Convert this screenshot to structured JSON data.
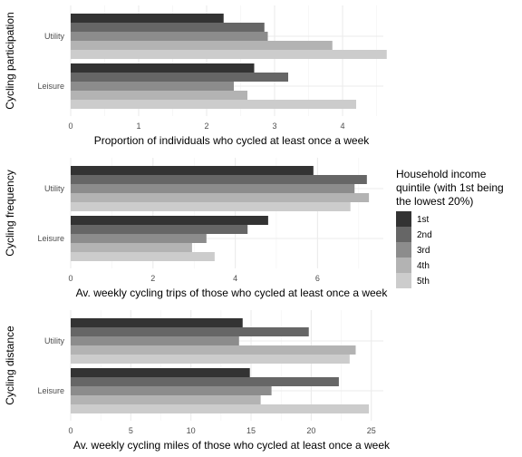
{
  "legend": {
    "title_lines": [
      "Household income",
      "quintile (with 1st being",
      "the lowest 20%)"
    ],
    "labels": [
      "1st",
      "2nd",
      "3rd",
      "4th",
      "5th"
    ]
  },
  "colors": [
    "#333333",
    "#666666",
    "#8c8c8c",
    "#b3b3b3",
    "#cccccc"
  ],
  "chart_data": [
    {
      "type": "bar",
      "orientation": "horizontal",
      "ylabel": "Cycling participation",
      "xlabel": "Proportion of individuals who cycled at least once a week",
      "categories": [
        "Utility",
        "Leisure"
      ],
      "xlim": [
        0,
        4.6
      ],
      "xticks": [
        0,
        1,
        2,
        3,
        4
      ],
      "series": [
        {
          "name": "1st",
          "values": [
            2.25,
            2.7
          ]
        },
        {
          "name": "2nd",
          "values": [
            2.85,
            3.2
          ]
        },
        {
          "name": "3rd",
          "values": [
            2.9,
            2.4
          ]
        },
        {
          "name": "4th",
          "values": [
            3.85,
            2.6
          ]
        },
        {
          "name": "5th",
          "values": [
            4.65,
            4.2
          ]
        }
      ]
    },
    {
      "type": "bar",
      "orientation": "horizontal",
      "ylabel": "Cycling frequency",
      "xlabel": "Av. weekly cycling trips of those who cycled at least once a week",
      "categories": [
        "Utility",
        "Leisure"
      ],
      "xlim": [
        0,
        7.6
      ],
      "xticks": [
        0,
        2,
        4,
        6
      ],
      "series": [
        {
          "name": "1st",
          "values": [
            5.9,
            4.8
          ]
        },
        {
          "name": "2nd",
          "values": [
            7.2,
            4.3
          ]
        },
        {
          "name": "3rd",
          "values": [
            6.9,
            3.3
          ]
        },
        {
          "name": "4th",
          "values": [
            7.25,
            2.95
          ]
        },
        {
          "name": "5th",
          "values": [
            6.8,
            3.5
          ]
        }
      ]
    },
    {
      "type": "bar",
      "orientation": "horizontal",
      "ylabel": "Cycling distance",
      "xlabel": "Av. weekly cycling miles of those who cycled at least once a week",
      "categories": [
        "Utility",
        "Leisure"
      ],
      "xlim": [
        0,
        26
      ],
      "xticks": [
        0,
        5,
        10,
        15,
        20,
        25
      ],
      "series": [
        {
          "name": "1st",
          "values": [
            14.3,
            14.9
          ]
        },
        {
          "name": "2nd",
          "values": [
            19.8,
            22.3
          ]
        },
        {
          "name": "3rd",
          "values": [
            14.0,
            16.7
          ]
        },
        {
          "name": "4th",
          "values": [
            23.7,
            15.8
          ]
        },
        {
          "name": "5th",
          "values": [
            23.2,
            24.8
          ]
        }
      ]
    }
  ]
}
